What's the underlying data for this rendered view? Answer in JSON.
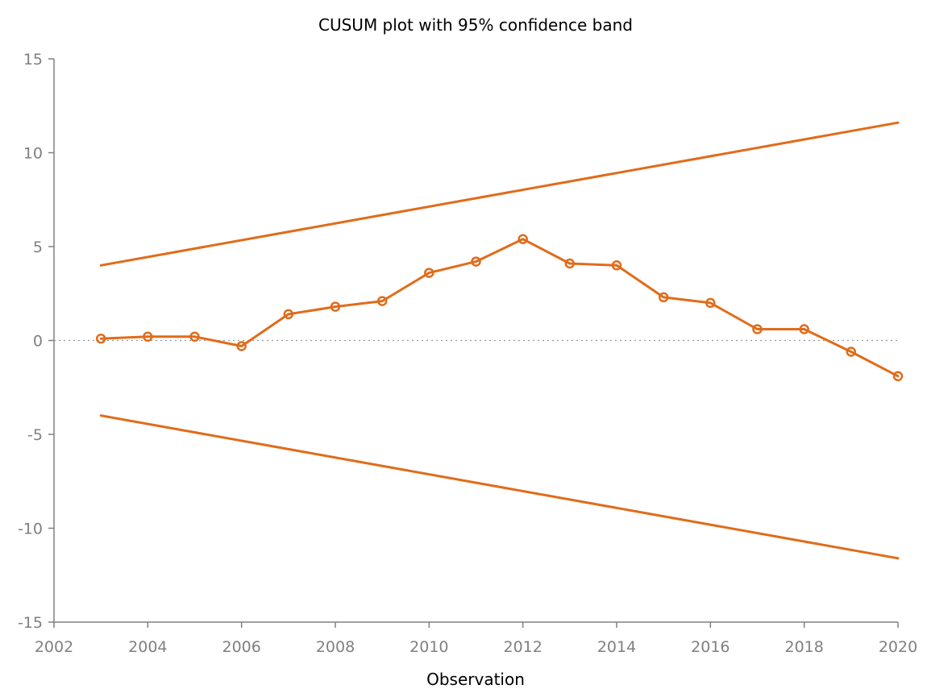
{
  "chart_data": {
    "type": "line",
    "title": "CUSUM plot with 95% confidence band",
    "xlabel": "Observation",
    "ylabel": "",
    "xlim": [
      2002,
      2020
    ],
    "ylim": [
      -15,
      15
    ],
    "x_ticks": [
      2002,
      2004,
      2006,
      2008,
      2010,
      2012,
      2014,
      2016,
      2018,
      2020
    ],
    "y_ticks": [
      15,
      10,
      5,
      0,
      -5,
      -10,
      -15
    ],
    "grid": false,
    "zero_reference_line": true,
    "color": "#e06c1a",
    "series": [
      {
        "x": [
          2003,
          2004,
          2005,
          2006,
          2007,
          2008,
          2009,
          2010,
          2011,
          2012,
          2013,
          2014,
          2015,
          2016,
          2017,
          2018,
          2019,
          2020
        ],
        "values": [
          0.1,
          0.2,
          0.2,
          -0.3,
          1.4,
          1.8,
          2.1,
          3.6,
          4.2,
          5.4,
          4.1,
          4.0,
          2.3,
          2.0,
          0.6,
          0.6,
          -0.6,
          -1.9
        ],
        "markers": true
      },
      {
        "x": [
          2003,
          2020
        ],
        "values": [
          4.0,
          11.6
        ],
        "markers": false
      },
      {
        "x": [
          2003,
          2020
        ],
        "values": [
          -4.0,
          -11.6
        ],
        "markers": false
      }
    ]
  }
}
